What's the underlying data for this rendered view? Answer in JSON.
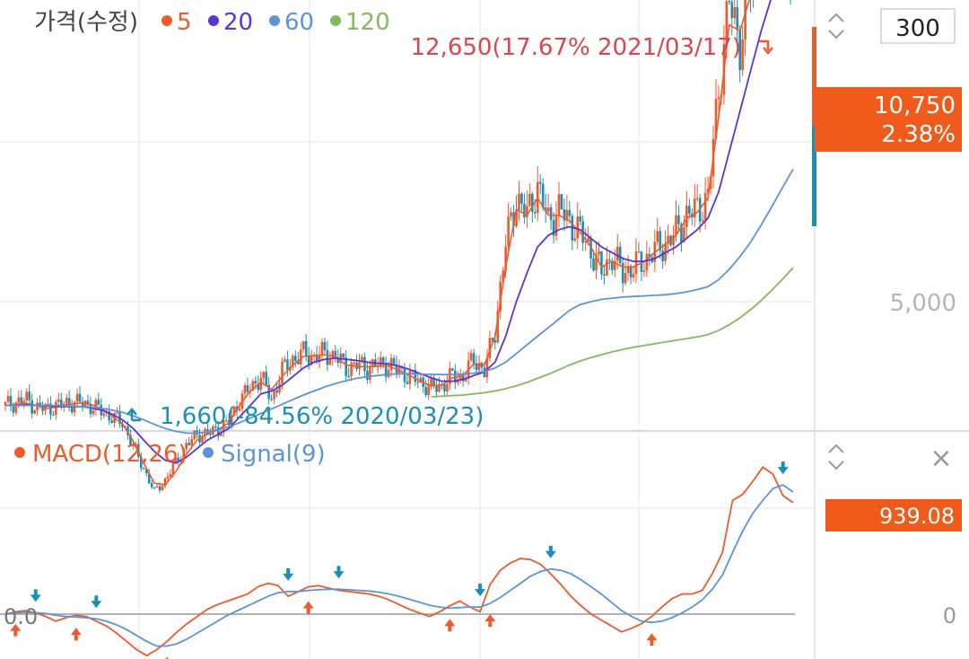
{
  "price_panel": {
    "title": "가격(수정)",
    "legend": [
      {
        "label": "5",
        "color": "#ef5a2b"
      },
      {
        "label": "20",
        "color": "#5b34d6"
      },
      {
        "label": "60",
        "color": "#5b95d6"
      },
      {
        "label": "120",
        "color": "#86b85e"
      }
    ],
    "period_value": "300",
    "y_tick": "5,000",
    "current_price": "10,750",
    "current_change": "2.38%",
    "high_annotation": "12,650(17.67% 2021/03/17)",
    "low_annotation": "1,660(-84.56% 2020/03/23)"
  },
  "macd_panel": {
    "legend": [
      {
        "label": "MACD(12,26)",
        "color": "#ef5a2b"
      },
      {
        "label": "Signal(9)",
        "color": "#5b95d6"
      }
    ],
    "current_value": "939.08",
    "zero_left": "0.0",
    "zero_right": "0",
    "close_symbol": "×"
  },
  "colors": {
    "up": "#ef5a2b",
    "down": "#1b8fb5",
    "ma5": "#ef5a2b",
    "ma20": "#5b34d6",
    "ma60": "#5b95d6",
    "ma120": "#86b85e",
    "macd": "#ef5a2b",
    "signal": "#5b95d6",
    "badge_price": "#f05a1a",
    "badge_macd": "#f05a1a",
    "high_text": "#d8474f",
    "low_text": "#1b8fb5"
  },
  "chart_data": [
    {
      "type": "line",
      "panel": "price",
      "note": "Daily candlestick price chart with moving averages; points approximate (index = trading day, left to right)",
      "y_ticks": [
        5000
      ],
      "series": [
        {
          "name": "가격(수정)",
          "values": [
            3200,
            3250,
            3300,
            3150,
            3150,
            3200,
            3250,
            3250,
            3200,
            3100,
            3000,
            2900,
            2500,
            2100,
            1700,
            1900,
            2200,
            2500,
            2700,
            2700,
            2800,
            2900,
            3300,
            3500,
            3700,
            3300,
            3800,
            4000,
            4100,
            4050,
            4100,
            4050,
            3850,
            3900,
            3850,
            3900,
            3900,
            3800,
            3700,
            3600,
            3500,
            3550,
            3700,
            3700,
            4000,
            3800,
            4500,
            6000,
            6800,
            6500,
            7000,
            6400,
            6600,
            6400,
            6200,
            5900,
            5500,
            5800,
            5500,
            5600,
            5700,
            5900,
            6000,
            6200,
            6500,
            6600,
            6800,
            8700,
            10200,
            9500,
            10500,
            12650,
            11700,
            11000,
            10750
          ]
        },
        {
          "name": "5",
          "values": [
            3200,
            3220,
            3230,
            3200,
            3150,
            3180,
            3220,
            3240,
            3220,
            3150,
            3020,
            2880,
            2580,
            2200,
            1850,
            1820,
            2050,
            2350,
            2600,
            2700,
            2780,
            2900,
            3200,
            3450,
            3600,
            3480,
            3700,
            3900,
            4050,
            4060,
            4080,
            4050,
            3900,
            3880,
            3870,
            3880,
            3890,
            3800,
            3720,
            3620,
            3540,
            3550,
            3680,
            3720,
            3920,
            3900,
            4400,
            5600,
            6600,
            6500,
            6800,
            6500,
            6500,
            6400,
            6200,
            5950,
            5600,
            5700,
            5600,
            5600,
            5700,
            5850,
            6000,
            6150,
            6450,
            6550,
            6800,
            8200,
            9800,
            9700,
            10300,
            12000,
            11800,
            11200,
            10750
          ]
        },
        {
          "name": "20",
          "values": [
            3200,
            3200,
            3210,
            3200,
            3190,
            3180,
            3180,
            3180,
            3160,
            3120,
            3050,
            2950,
            2800,
            2600,
            2400,
            2250,
            2200,
            2300,
            2450,
            2600,
            2700,
            2800,
            3000,
            3200,
            3400,
            3450,
            3550,
            3700,
            3850,
            3950,
            4000,
            4020,
            4000,
            3980,
            3950,
            3930,
            3920,
            3880,
            3820,
            3750,
            3680,
            3620,
            3620,
            3650,
            3720,
            3780,
            3950,
            4400,
            5000,
            5500,
            5950,
            6150,
            6250,
            6300,
            6250,
            6100,
            5950,
            5850,
            5750,
            5700,
            5700,
            5750,
            5850,
            5950,
            6100,
            6250,
            6450,
            6900,
            7600,
            8300,
            9000,
            9700,
            10300,
            10500,
            10600
          ]
        },
        {
          "name": "60",
          "values": [
            3200,
            3200,
            3200,
            3200,
            3200,
            3200,
            3190,
            3180,
            3170,
            3150,
            3120,
            3080,
            3020,
            2950,
            2870,
            2800,
            2750,
            2720,
            2720,
            2740,
            2780,
            2830,
            2900,
            2980,
            3060,
            3140,
            3220,
            3300,
            3380,
            3450,
            3520,
            3580,
            3630,
            3670,
            3700,
            3720,
            3740,
            3750,
            3750,
            3745,
            3740,
            3735,
            3735,
            3740,
            3760,
            3790,
            3850,
            3950,
            4100,
            4250,
            4400,
            4550,
            4700,
            4850,
            4950,
            5000,
            5040,
            5060,
            5080,
            5090,
            5100,
            5110,
            5120,
            5140,
            5170,
            5210,
            5260,
            5380,
            5560,
            5780,
            6030,
            6330,
            6650,
            6980,
            7300
          ]
        },
        {
          "name": "120",
          "values": [
            null,
            null,
            null,
            null,
            null,
            null,
            null,
            null,
            null,
            null,
            null,
            null,
            null,
            null,
            null,
            null,
            null,
            null,
            null,
            null,
            null,
            null,
            null,
            null,
            null,
            null,
            null,
            null,
            null,
            null,
            null,
            null,
            null,
            null,
            null,
            null,
            null,
            null,
            null,
            null,
            3350,
            3360,
            3370,
            3380,
            3400,
            3420,
            3450,
            3490,
            3540,
            3600,
            3670,
            3740,
            3820,
            3900,
            3970,
            4030,
            4080,
            4130,
            4170,
            4210,
            4240,
            4270,
            4300,
            4330,
            4360,
            4390,
            4430,
            4500,
            4600,
            4720,
            4860,
            5020,
            5200,
            5390,
            5590
          ]
        }
      ]
    },
    {
      "type": "line",
      "panel": "macd",
      "note": "MACD oscillator; values approximate (zero line shown)",
      "y_ticks": [
        0
      ],
      "series": [
        {
          "name": "MACD(12,26)",
          "values": [
            0,
            20,
            30,
            10,
            -20,
            -60,
            -30,
            -10,
            -20,
            -60,
            -100,
            -160,
            -230,
            -300,
            -350,
            -300,
            -230,
            -150,
            -80,
            -20,
            40,
            80,
            110,
            140,
            170,
            230,
            260,
            240,
            150,
            190,
            230,
            240,
            220,
            200,
            190,
            180,
            170,
            150,
            120,
            80,
            40,
            10,
            -20,
            20,
            70,
            110,
            60,
            20,
            250,
            370,
            430,
            470,
            460,
            420,
            340,
            250,
            150,
            70,
            0,
            -50,
            -100,
            -150,
            -120,
            -80,
            -20,
            60,
            130,
            170,
            170,
            200,
            340,
            520,
            960,
            1010,
            1120,
            1240,
            1180,
            1000,
            940
          ]
        },
        {
          "name": "Signal(9)",
          "values": [
            0,
            10,
            15,
            12,
            5,
            -10,
            -20,
            -25,
            -30,
            -40,
            -60,
            -90,
            -130,
            -180,
            -230,
            -270,
            -270,
            -250,
            -210,
            -160,
            -110,
            -60,
            -10,
            30,
            70,
            110,
            150,
            180,
            190,
            190,
            200,
            205,
            210,
            210,
            205,
            200,
            195,
            185,
            170,
            150,
            125,
            100,
            75,
            60,
            50,
            55,
            60,
            60,
            90,
            140,
            200,
            260,
            320,
            360,
            380,
            370,
            340,
            290,
            230,
            170,
            100,
            30,
            -20,
            -60,
            -70,
            -60,
            -30,
            10,
            60,
            120,
            210,
            330,
            520,
            700,
            850,
            960,
            1060,
            1090,
            1030
          ]
        }
      ]
    }
  ]
}
